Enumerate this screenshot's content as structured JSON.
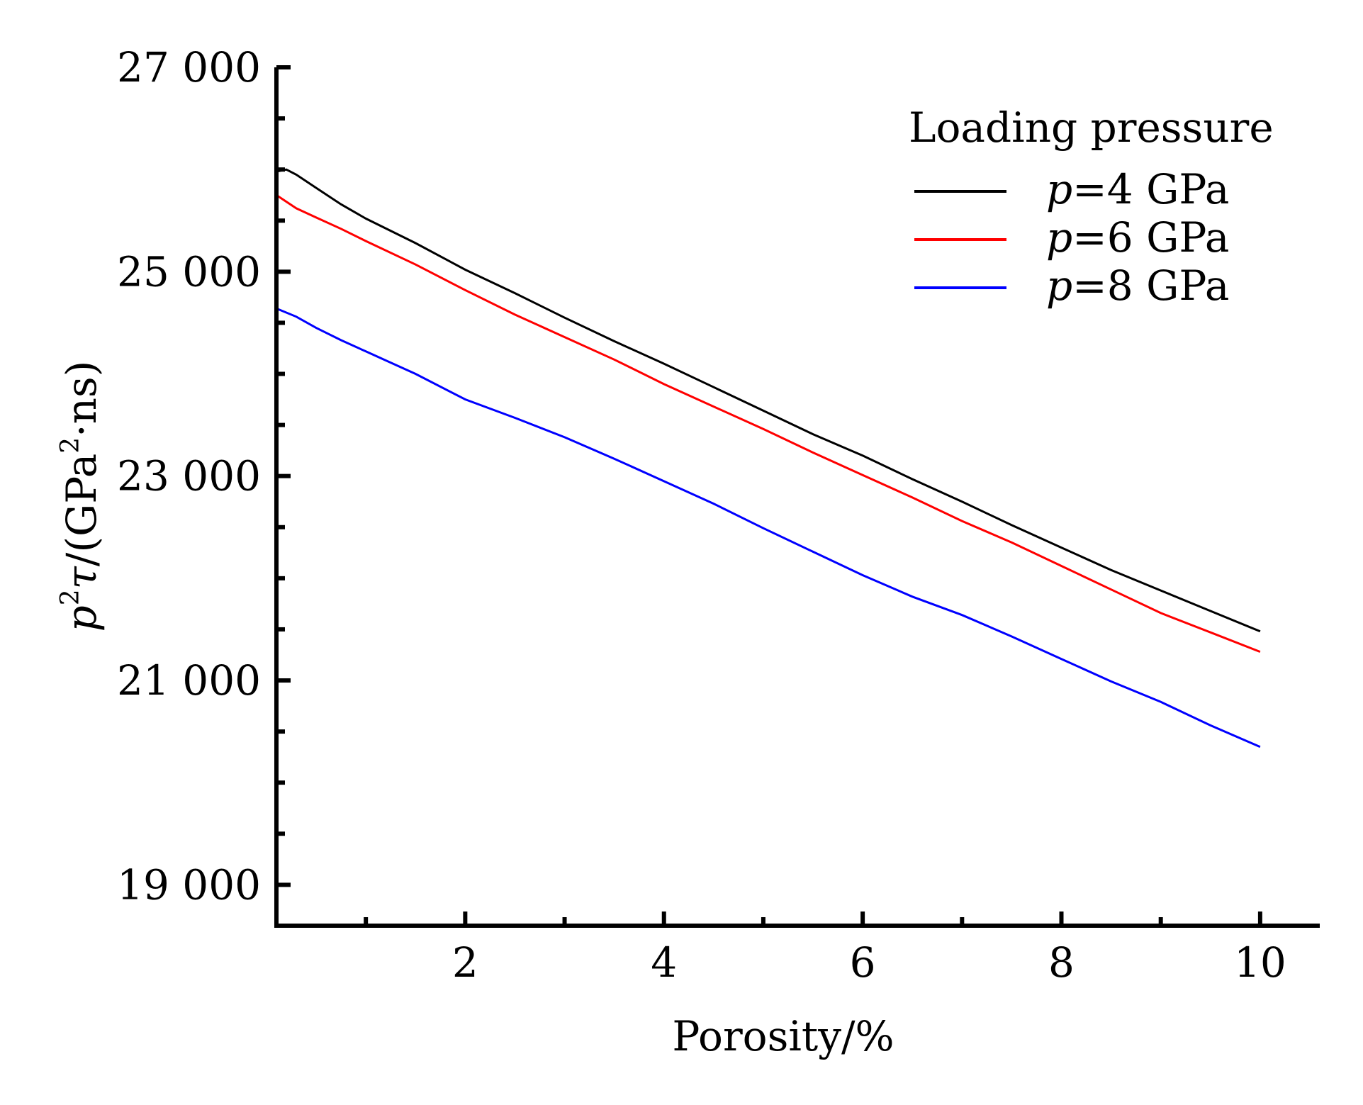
{
  "chart_data": {
    "type": "line",
    "title": "",
    "xlabel": "Porosity/%",
    "ylabel": {
      "p": "p",
      "p_sup": "2",
      "tau": "τ",
      "unit_open": "/(GPa",
      "unit_sup": "2",
      "unit_close": "·ns)"
    },
    "xlim": [
      0.1,
      10.6
    ],
    "ylim": [
      18600,
      27000
    ],
    "x_ticks": [
      {
        "value": 2,
        "label": "2"
      },
      {
        "value": 4,
        "label": "4"
      },
      {
        "value": 6,
        "label": "6"
      },
      {
        "value": 8,
        "label": "8"
      },
      {
        "value": 10,
        "label": "10"
      }
    ],
    "x_minor_ticks": [
      1,
      3,
      5,
      7,
      9
    ],
    "y_ticks": [
      {
        "value": 19000,
        "label": "19 000"
      },
      {
        "value": 21000,
        "label": "21 000"
      },
      {
        "value": 23000,
        "label": "23 000"
      },
      {
        "value": 25000,
        "label": "25 000"
      },
      {
        "value": 27000,
        "label": "27 000"
      }
    ],
    "y_minor_ticks": [
      19500,
      20000,
      20500,
      21500,
      22000,
      22500,
      23500,
      24000,
      24500,
      25500,
      26000,
      26500
    ],
    "legend": {
      "title": "Loading pressure",
      "position": "top-right"
    },
    "series": [
      {
        "name_var": "p",
        "name_rest": "=4 GPa",
        "color": "#000000",
        "points": [
          [
            0.1,
            25980
          ],
          [
            0.2,
            26000
          ],
          [
            0.3,
            25950
          ],
          [
            0.5,
            25820
          ],
          [
            0.75,
            25660
          ],
          [
            1.0,
            25520
          ],
          [
            1.5,
            25280
          ],
          [
            2.0,
            25020
          ],
          [
            2.5,
            24790
          ],
          [
            3.0,
            24550
          ],
          [
            3.5,
            24320
          ],
          [
            4.0,
            24100
          ],
          [
            4.5,
            23870
          ],
          [
            5.0,
            23640
          ],
          [
            5.5,
            23410
          ],
          [
            6.0,
            23200
          ],
          [
            6.5,
            22970
          ],
          [
            7.0,
            22750
          ],
          [
            7.5,
            22520
          ],
          [
            8.0,
            22300
          ],
          [
            8.5,
            22080
          ],
          [
            9.0,
            21880
          ],
          [
            9.5,
            21680
          ],
          [
            10.0,
            21480
          ]
        ]
      },
      {
        "name_var": "p",
        "name_rest": "=6 GPa",
        "color": "#ff0000",
        "points": [
          [
            0.1,
            25750
          ],
          [
            0.3,
            25620
          ],
          [
            0.5,
            25530
          ],
          [
            0.75,
            25420
          ],
          [
            1.0,
            25300
          ],
          [
            1.5,
            25070
          ],
          [
            2.0,
            24820
          ],
          [
            2.5,
            24580
          ],
          [
            3.0,
            24360
          ],
          [
            3.5,
            24140
          ],
          [
            4.0,
            23900
          ],
          [
            4.5,
            23680
          ],
          [
            5.0,
            23460
          ],
          [
            5.5,
            23230
          ],
          [
            6.0,
            23010
          ],
          [
            6.5,
            22790
          ],
          [
            7.0,
            22560
          ],
          [
            7.5,
            22350
          ],
          [
            8.0,
            22120
          ],
          [
            8.5,
            21890
          ],
          [
            9.0,
            21660
          ],
          [
            9.5,
            21470
          ],
          [
            10.0,
            21280
          ]
        ]
      },
      {
        "name_var": "p",
        "name_rest": "=8 GPa",
        "color": "#0000ff",
        "points": [
          [
            0.1,
            24640
          ],
          [
            0.3,
            24560
          ],
          [
            0.5,
            24450
          ],
          [
            0.75,
            24330
          ],
          [
            1.0,
            24220
          ],
          [
            1.5,
            24000
          ],
          [
            2.0,
            23750
          ],
          [
            2.5,
            23570
          ],
          [
            3.0,
            23380
          ],
          [
            3.5,
            23170
          ],
          [
            4.0,
            22950
          ],
          [
            4.5,
            22730
          ],
          [
            5.0,
            22490
          ],
          [
            5.5,
            22260
          ],
          [
            6.0,
            22030
          ],
          [
            6.5,
            21820
          ],
          [
            7.0,
            21640
          ],
          [
            7.5,
            21430
          ],
          [
            8.0,
            21210
          ],
          [
            8.5,
            20990
          ],
          [
            9.0,
            20790
          ],
          [
            9.5,
            20560
          ],
          [
            10.0,
            20350
          ]
        ]
      }
    ]
  }
}
